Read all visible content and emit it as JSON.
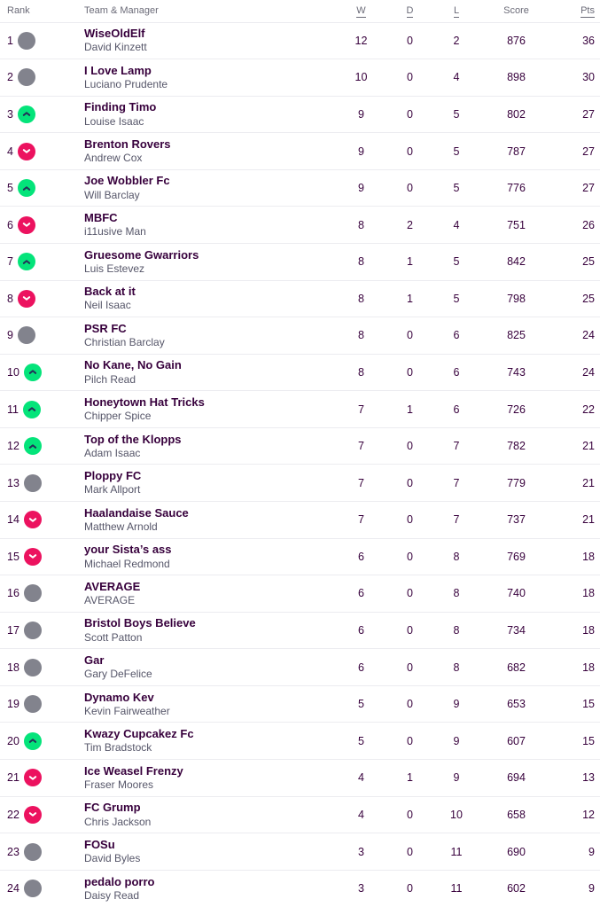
{
  "colors": {
    "team_name": "#37003c",
    "manager": "#565669",
    "header_text": "#6b6b78",
    "number_text": "#37003c",
    "divider": "#ececf0",
    "movement_up_bg": "#04e47a",
    "movement_up_glyph": "#233158",
    "movement_down_bg": "#ec125f",
    "movement_down_glyph": "#ffffff",
    "movement_same_bg": "#82838d"
  },
  "table": {
    "headers": {
      "rank": "Rank",
      "team": "Team & Manager",
      "wins": "W",
      "draws": "D",
      "losses": "L",
      "score": "Score",
      "points": "Pts"
    },
    "rows": [
      {
        "rank": 1,
        "movement": "same",
        "team": "WiseOldElf",
        "manager": "David Kinzett",
        "wins": 12,
        "draws": 0,
        "losses": 2,
        "score": 876,
        "points": 36
      },
      {
        "rank": 2,
        "movement": "same",
        "team": "I Love Lamp",
        "manager": "Luciano Prudente",
        "wins": 10,
        "draws": 0,
        "losses": 4,
        "score": 898,
        "points": 30
      },
      {
        "rank": 3,
        "movement": "up",
        "team": "Finding Timo",
        "manager": "Louise Isaac",
        "wins": 9,
        "draws": 0,
        "losses": 5,
        "score": 802,
        "points": 27
      },
      {
        "rank": 4,
        "movement": "down",
        "team": "Brenton Rovers",
        "manager": "Andrew Cox",
        "wins": 9,
        "draws": 0,
        "losses": 5,
        "score": 787,
        "points": 27
      },
      {
        "rank": 5,
        "movement": "up",
        "team": "Joe Wobbler Fc",
        "manager": "Will Barclay",
        "wins": 9,
        "draws": 0,
        "losses": 5,
        "score": 776,
        "points": 27
      },
      {
        "rank": 6,
        "movement": "down",
        "team": "MBFC",
        "manager": "i11usive Man",
        "wins": 8,
        "draws": 2,
        "losses": 4,
        "score": 751,
        "points": 26
      },
      {
        "rank": 7,
        "movement": "up",
        "team": "Gruesome Gwarriors",
        "manager": "Luis Estevez",
        "wins": 8,
        "draws": 1,
        "losses": 5,
        "score": 842,
        "points": 25
      },
      {
        "rank": 8,
        "movement": "down",
        "team": "Back at it",
        "manager": "Neil Isaac",
        "wins": 8,
        "draws": 1,
        "losses": 5,
        "score": 798,
        "points": 25
      },
      {
        "rank": 9,
        "movement": "same",
        "team": "PSR FC",
        "manager": "Christian Barclay",
        "wins": 8,
        "draws": 0,
        "losses": 6,
        "score": 825,
        "points": 24
      },
      {
        "rank": 10,
        "movement": "up",
        "team": "No Kane, No Gain",
        "manager": "Pilch Read",
        "wins": 8,
        "draws": 0,
        "losses": 6,
        "score": 743,
        "points": 24
      },
      {
        "rank": 11,
        "movement": "up",
        "team": "Honeytown Hat Tricks",
        "manager": "Chipper Spice",
        "wins": 7,
        "draws": 1,
        "losses": 6,
        "score": 726,
        "points": 22
      },
      {
        "rank": 12,
        "movement": "up",
        "team": "Top of the Klopps",
        "manager": "Adam Isaac",
        "wins": 7,
        "draws": 0,
        "losses": 7,
        "score": 782,
        "points": 21
      },
      {
        "rank": 13,
        "movement": "same",
        "team": "Ploppy FC",
        "manager": "Mark Allport",
        "wins": 7,
        "draws": 0,
        "losses": 7,
        "score": 779,
        "points": 21
      },
      {
        "rank": 14,
        "movement": "down",
        "team": "Haalandaise Sauce",
        "manager": "Matthew Arnold",
        "wins": 7,
        "draws": 0,
        "losses": 7,
        "score": 737,
        "points": 21
      },
      {
        "rank": 15,
        "movement": "down",
        "team": "your Sista’s ass",
        "manager": "Michael Redmond",
        "wins": 6,
        "draws": 0,
        "losses": 8,
        "score": 769,
        "points": 18
      },
      {
        "rank": 16,
        "movement": "same",
        "team": "AVERAGE",
        "manager": "AVERAGE",
        "wins": 6,
        "draws": 0,
        "losses": 8,
        "score": 740,
        "points": 18
      },
      {
        "rank": 17,
        "movement": "same",
        "team": "Bristol Boys Believe",
        "manager": "Scott Patton",
        "wins": 6,
        "draws": 0,
        "losses": 8,
        "score": 734,
        "points": 18
      },
      {
        "rank": 18,
        "movement": "same",
        "team": "Gar",
        "manager": "Gary DeFelice",
        "wins": 6,
        "draws": 0,
        "losses": 8,
        "score": 682,
        "points": 18
      },
      {
        "rank": 19,
        "movement": "same",
        "team": "Dynamo Kev",
        "manager": "Kevin Fairweather",
        "wins": 5,
        "draws": 0,
        "losses": 9,
        "score": 653,
        "points": 15
      },
      {
        "rank": 20,
        "movement": "up",
        "team": "Kwazy Cupcakez Fc",
        "manager": "Tim Bradstock",
        "wins": 5,
        "draws": 0,
        "losses": 9,
        "score": 607,
        "points": 15
      },
      {
        "rank": 21,
        "movement": "down",
        "team": "Ice Weasel Frenzy",
        "manager": "Fraser Moores",
        "wins": 4,
        "draws": 1,
        "losses": 9,
        "score": 694,
        "points": 13
      },
      {
        "rank": 22,
        "movement": "down",
        "team": "FC Grump",
        "manager": "Chris Jackson",
        "wins": 4,
        "draws": 0,
        "losses": 10,
        "score": 658,
        "points": 12
      },
      {
        "rank": 23,
        "movement": "same",
        "team": "FOSu",
        "manager": "David Byles",
        "wins": 3,
        "draws": 0,
        "losses": 11,
        "score": 690,
        "points": 9
      },
      {
        "rank": 24,
        "movement": "same",
        "team": "pedalo porro",
        "manager": "Daisy Read",
        "wins": 3,
        "draws": 0,
        "losses": 11,
        "score": 602,
        "points": 9
      }
    ]
  }
}
